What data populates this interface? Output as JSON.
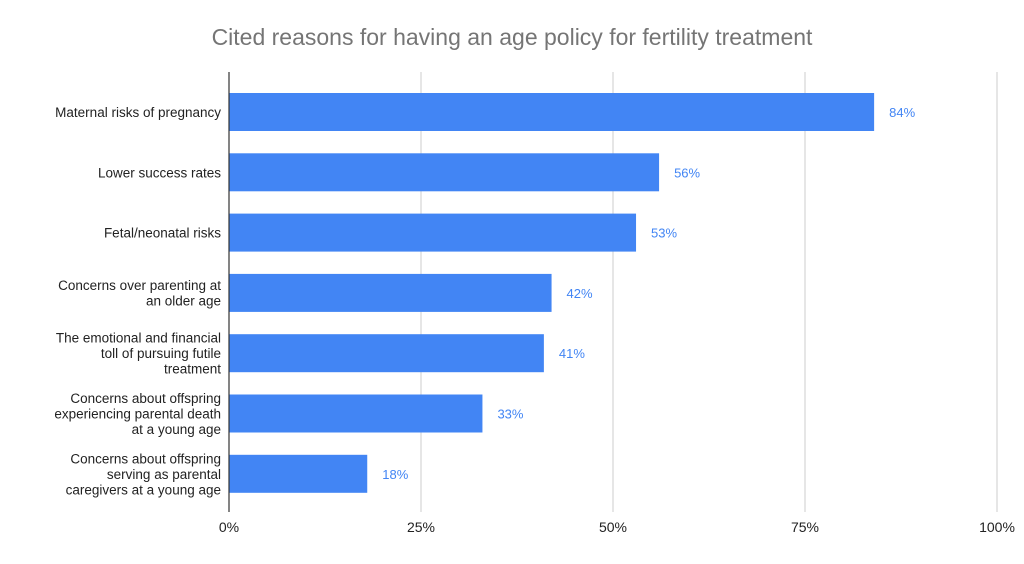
{
  "chart_data": {
    "type": "bar",
    "orientation": "horizontal",
    "title": "Cited reasons for having an age policy for fertility treatment",
    "categories": [
      [
        "Maternal risks of pregnancy"
      ],
      [
        "Lower success rates"
      ],
      [
        "Fetal/neonatal risks"
      ],
      [
        "Concerns over parenting at",
        "an older age"
      ],
      [
        "The emotional and financial",
        "toll of pursuing futile",
        "treatment"
      ],
      [
        "Concerns about offspring",
        "experiencing parental death",
        "at a young age"
      ],
      [
        "Concerns about offspring",
        "serving as parental",
        "caregivers at a young age"
      ]
    ],
    "values": [
      84,
      56,
      53,
      42,
      41,
      33,
      18
    ],
    "data_labels": [
      "84%",
      "56%",
      "53%",
      "42%",
      "41%",
      "33%",
      "18%"
    ],
    "xlim": [
      0,
      100
    ],
    "x_ticks": [
      0,
      25,
      50,
      75,
      100
    ],
    "x_tick_labels": [
      "0%",
      "25%",
      "50%",
      "75%",
      "100%"
    ],
    "xlabel": "",
    "ylabel": "",
    "grid": true,
    "legend": "none",
    "colors": {
      "bar": "#4285f4",
      "data_label": "#4285f4",
      "title": "#757575",
      "text": "#222222",
      "gridline": "#cccccc",
      "axis": "#333333"
    }
  }
}
